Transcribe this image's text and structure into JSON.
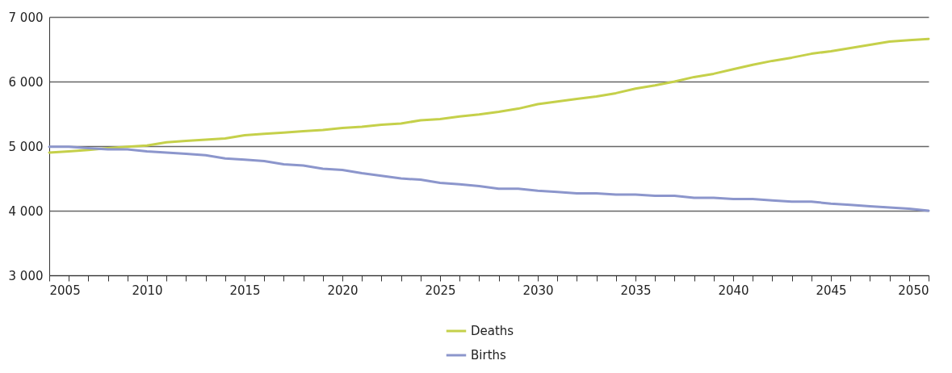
{
  "chart_data": {
    "type": "line",
    "x": [
      2005,
      2006,
      2007,
      2008,
      2009,
      2010,
      2011,
      2012,
      2013,
      2014,
      2015,
      2016,
      2017,
      2018,
      2019,
      2020,
      2021,
      2022,
      2023,
      2024,
      2025,
      2026,
      2027,
      2028,
      2029,
      2030,
      2031,
      2032,
      2033,
      2034,
      2035,
      2036,
      2037,
      2038,
      2039,
      2040,
      2041,
      2042,
      2043,
      2044,
      2045,
      2046,
      2047,
      2048,
      2049,
      2050
    ],
    "series": [
      {
        "name": "Deaths",
        "color": "#c5d04a",
        "values": [
          4900,
          4920,
          4940,
          4970,
          4990,
          5010,
          5060,
          5080,
          5100,
          5120,
          5170,
          5190,
          5210,
          5230,
          5250,
          5280,
          5300,
          5330,
          5350,
          5400,
          5420,
          5460,
          5490,
          5530,
          5580,
          5650,
          5690,
          5730,
          5770,
          5820,
          5890,
          5940,
          6000,
          6070,
          6120,
          6190,
          6260,
          6320,
          6370,
          6430,
          6470,
          6520,
          6570,
          6620,
          6640,
          6660
        ]
      },
      {
        "name": "Births",
        "color": "#8c96cc",
        "values": [
          4990,
          4990,
          4970,
          4950,
          4950,
          4920,
          4900,
          4880,
          4860,
          4810,
          4790,
          4770,
          4720,
          4700,
          4650,
          4630,
          4580,
          4540,
          4500,
          4480,
          4430,
          4410,
          4380,
          4340,
          4340,
          4310,
          4290,
          4270,
          4270,
          4250,
          4250,
          4230,
          4230,
          4200,
          4200,
          4180,
          4180,
          4160,
          4140,
          4140,
          4110,
          4090,
          4070,
          4050,
          4030,
          4000
        ]
      }
    ],
    "xlim": [
      2005,
      2050
    ],
    "xticks": [
      2005,
      {
        "value": 2006,
        "label": null
      },
      {
        "value": 2007,
        "label": null
      },
      {
        "value": 2008,
        "label": null
      },
      {
        "value": 2009,
        "label": null
      },
      2010,
      {
        "value": 2011,
        "label": null
      },
      {
        "value": 2012,
        "label": null
      },
      {
        "value": 2013,
        "label": null
      },
      {
        "value": 2014,
        "label": null
      },
      2015,
      {
        "value": 2016,
        "label": null
      },
      {
        "value": 2017,
        "label": null
      },
      {
        "value": 2018,
        "label": null
      },
      {
        "value": 2019,
        "label": null
      },
      2020,
      {
        "value": 2021,
        "label": null
      },
      {
        "value": 2022,
        "label": null
      },
      {
        "value": 2023,
        "label": null
      },
      {
        "value": 2024,
        "label": null
      },
      2025,
      {
        "value": 2026,
        "label": null
      },
      {
        "value": 2027,
        "label": null
      },
      {
        "value": 2028,
        "label": null
      },
      {
        "value": 2029,
        "label": null
      },
      2030,
      {
        "value": 2031,
        "label": null
      },
      {
        "value": 2032,
        "label": null
      },
      {
        "value": 2033,
        "label": null
      },
      {
        "value": 2034,
        "label": null
      },
      2035,
      {
        "value": 2036,
        "label": null
      },
      {
        "value": 2037,
        "label": null
      },
      {
        "value": 2038,
        "label": null
      },
      {
        "value": 2039,
        "label": null
      },
      2040,
      {
        "value": 2041,
        "label": null
      },
      {
        "value": 2042,
        "label": null
      },
      {
        "value": 2043,
        "label": null
      },
      {
        "value": 2044,
        "label": null
      },
      2045,
      {
        "value": 2046,
        "label": null
      },
      {
        "value": 2047,
        "label": null
      },
      {
        "value": 2048,
        "label": null
      },
      {
        "value": 2049,
        "label": null
      },
      2050
    ],
    "ylim": [
      3000,
      7000
    ],
    "yticks": [
      {
        "value": 3000,
        "label": "3 000"
      },
      {
        "value": 4000,
        "label": "4 000"
      },
      {
        "value": 5000,
        "label": "5 000"
      },
      {
        "value": 6000,
        "label": "6 000"
      },
      {
        "value": 7000,
        "label": "7 000"
      }
    ],
    "grid": "y",
    "legend": "bottom",
    "line_style": "solid",
    "marker": "none"
  }
}
